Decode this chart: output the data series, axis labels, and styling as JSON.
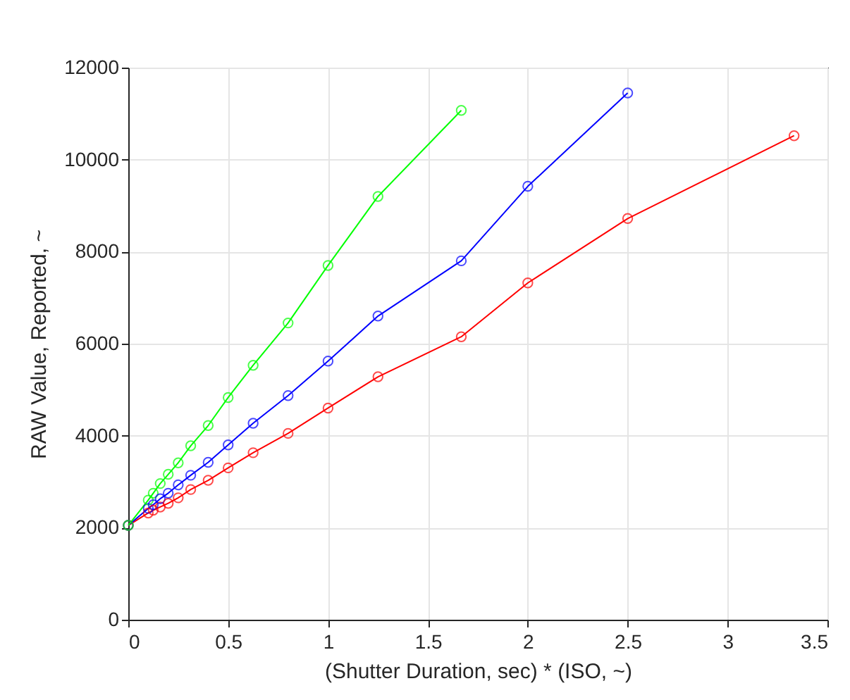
{
  "chart_data": {
    "type": "line",
    "xlabel": "(Shutter Duration, sec) * (ISO, ~)",
    "ylabel": "RAW Value, Reported, ~",
    "xlim": [
      0,
      3.5
    ],
    "xticks": [
      0,
      0.5,
      1,
      1.5,
      2,
      2.5,
      3,
      3.5
    ],
    "ylim": [
      0,
      12000
    ],
    "yticks": [
      0,
      2000,
      4000,
      6000,
      8000,
      10000,
      12000
    ],
    "grid": true,
    "marker": "circle",
    "line_style": "solid",
    "series": [
      {
        "color": "#ff0000",
        "x": [
          0,
          0.1,
          0.125,
          0.16,
          0.2,
          0.25,
          0.3125,
          0.4,
          0.5,
          0.625,
          0.8,
          1,
          1.25,
          1.667,
          2,
          2.5,
          3.333
        ],
        "values": [
          2050,
          2320,
          2380,
          2450,
          2530,
          2650,
          2830,
          3030,
          3300,
          3630,
          4050,
          4600,
          5280,
          6150,
          7320,
          8720,
          10520
        ]
      },
      {
        "color": "#0000ff",
        "x": [
          0,
          0.1,
          0.125,
          0.16,
          0.2,
          0.25,
          0.3125,
          0.4,
          0.5,
          0.625,
          0.8,
          1,
          1.25,
          1.667,
          2,
          2.5
        ],
        "values": [
          2050,
          2420,
          2500,
          2630,
          2750,
          2930,
          3140,
          3420,
          3800,
          4270,
          4870,
          5620,
          6600,
          7800,
          9420,
          11450
        ]
      },
      {
        "color": "#00ff00",
        "x": [
          0,
          0.1,
          0.125,
          0.16,
          0.2,
          0.25,
          0.3125,
          0.4,
          0.5,
          0.625,
          0.8,
          1,
          1.25,
          1.667
        ],
        "values": [
          2050,
          2600,
          2750,
          2960,
          3160,
          3410,
          3780,
          4220,
          4830,
          5530,
          6450,
          7700,
          9200,
          11070
        ]
      }
    ]
  }
}
